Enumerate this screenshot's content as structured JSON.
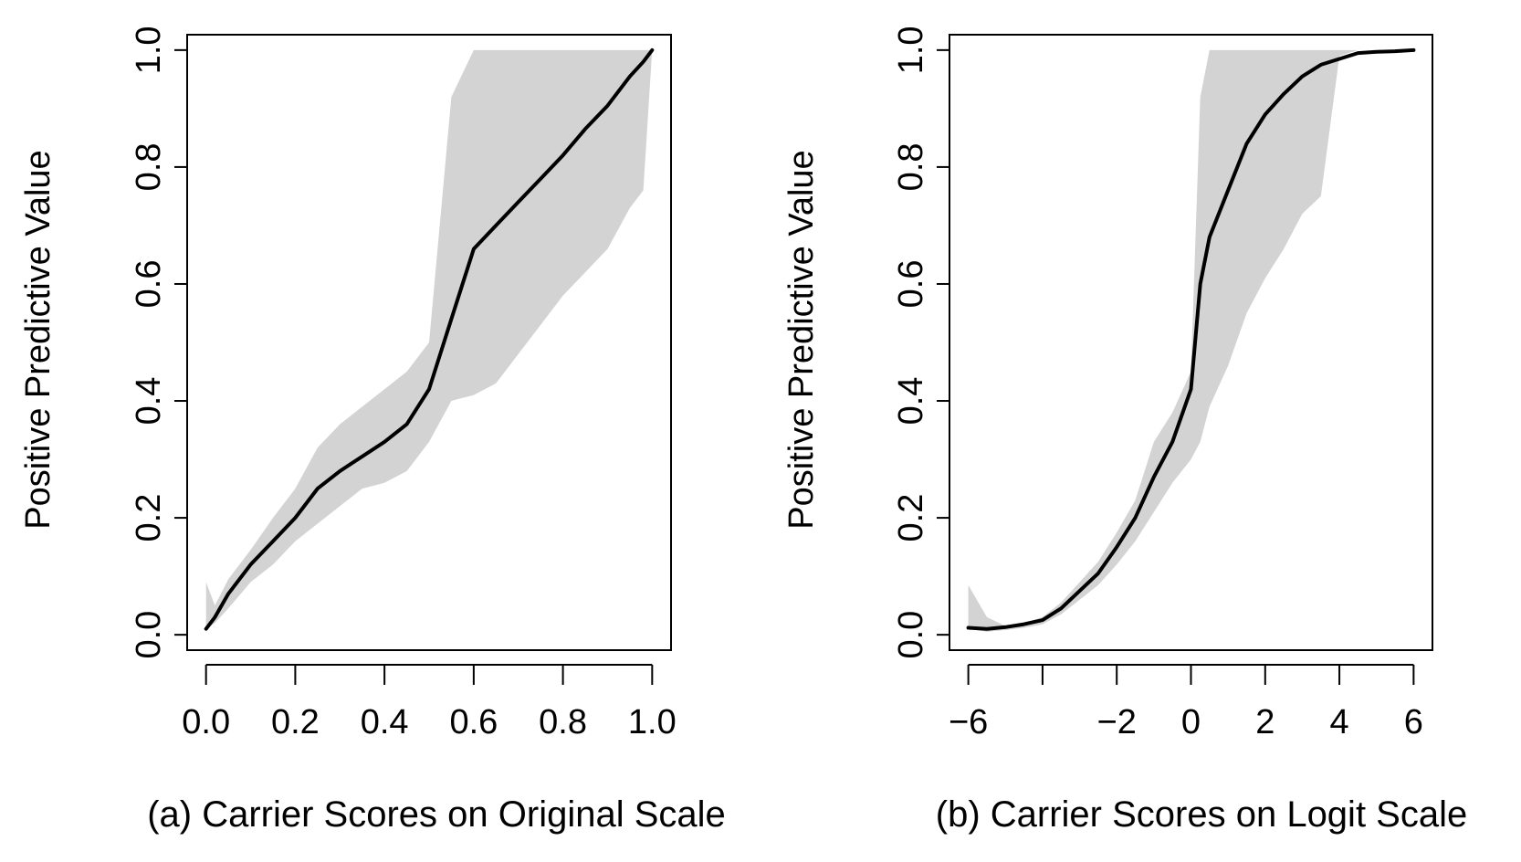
{
  "chart_data": [
    {
      "type": "line",
      "caption": "(a) Carrier Scores on Original Scale",
      "ylabel": "Positive Predictive Value",
      "xlabel": "",
      "xlim": [
        0.0,
        1.0
      ],
      "ylim": [
        0.0,
        1.0
      ],
      "x_ticks": [
        "0.0",
        "0.2",
        "0.4",
        "0.6",
        "0.8",
        "1.0"
      ],
      "y_ticks": [
        "0.0",
        "0.2",
        "0.4",
        "0.6",
        "0.8",
        "1.0"
      ],
      "band_color": "#d3d3d3",
      "line_color": "#000000",
      "series": [
        {
          "role": "estimate",
          "x": [
            0.0,
            0.02,
            0.05,
            0.1,
            0.15,
            0.2,
            0.25,
            0.3,
            0.35,
            0.4,
            0.45,
            0.5,
            0.55,
            0.6,
            0.65,
            0.7,
            0.75,
            0.8,
            0.85,
            0.9,
            0.95,
            0.98,
            1.0
          ],
          "y": [
            0.01,
            0.03,
            0.07,
            0.12,
            0.16,
            0.2,
            0.25,
            0.28,
            0.305,
            0.33,
            0.36,
            0.42,
            0.54,
            0.66,
            0.7,
            0.74,
            0.78,
            0.82,
            0.865,
            0.905,
            0.955,
            0.98,
            1.0
          ]
        },
        {
          "role": "band-upper",
          "x": [
            0.0,
            0.02,
            0.05,
            0.1,
            0.15,
            0.2,
            0.25,
            0.3,
            0.35,
            0.4,
            0.45,
            0.5,
            0.55,
            0.6,
            0.65,
            0.7,
            0.75,
            0.8,
            0.85,
            0.9,
            0.95,
            0.98,
            1.0
          ],
          "y": [
            0.09,
            0.05,
            0.095,
            0.145,
            0.2,
            0.25,
            0.32,
            0.36,
            0.39,
            0.42,
            0.45,
            0.5,
            0.92,
            1.0,
            1.0,
            1.0,
            1.0,
            1.0,
            1.0,
            1.0,
            1.0,
            1.0,
            1.0
          ]
        },
        {
          "role": "band-lower",
          "x": [
            0.0,
            0.02,
            0.05,
            0.1,
            0.15,
            0.2,
            0.25,
            0.3,
            0.35,
            0.4,
            0.45,
            0.5,
            0.55,
            0.6,
            0.65,
            0.7,
            0.75,
            0.8,
            0.85,
            0.9,
            0.95,
            0.98,
            1.0
          ],
          "y": [
            0.01,
            0.02,
            0.045,
            0.09,
            0.12,
            0.16,
            0.19,
            0.22,
            0.25,
            0.26,
            0.28,
            0.33,
            0.4,
            0.41,
            0.43,
            0.48,
            0.53,
            0.58,
            0.62,
            0.66,
            0.73,
            0.76,
            1.0
          ]
        }
      ]
    },
    {
      "type": "line",
      "caption": "(b) Carrier Scores on Logit Scale",
      "ylabel": "Positive Predictive Value",
      "xlabel": "",
      "xlim": [
        -6,
        6
      ],
      "ylim": [
        0.0,
        1.0
      ],
      "x_ticks": [
        "−6",
        "−4",
        "−2",
        "0",
        "2",
        "4",
        "6"
      ],
      "x_tick_values": [
        -6,
        -4,
        -2,
        0,
        2,
        4,
        6
      ],
      "x_tick_labels_shown": [
        "−6",
        "",
        "−2",
        "0",
        "2",
        "4",
        "6"
      ],
      "y_ticks": [
        "0.0",
        "0.2",
        "0.4",
        "0.6",
        "0.8",
        "1.0"
      ],
      "band_color": "#d3d3d3",
      "line_color": "#000000",
      "series": [
        {
          "role": "estimate",
          "x": [
            -6,
            -5.5,
            -5,
            -4.5,
            -4,
            -3.5,
            -3,
            -2.5,
            -2,
            -1.5,
            -1,
            -0.5,
            0,
            0.25,
            0.5,
            1,
            1.5,
            2,
            2.5,
            3,
            3.5,
            4,
            4.5,
            5,
            5.5,
            6
          ],
          "y": [
            0.012,
            0.01,
            0.013,
            0.018,
            0.025,
            0.045,
            0.075,
            0.105,
            0.15,
            0.2,
            0.27,
            0.33,
            0.42,
            0.6,
            0.68,
            0.76,
            0.84,
            0.89,
            0.925,
            0.955,
            0.975,
            0.985,
            0.995,
            0.997,
            0.998,
            1.0
          ]
        },
        {
          "role": "band-upper",
          "x": [
            -6,
            -5.5,
            -5,
            -4.5,
            -4,
            -3.5,
            -3,
            -2.5,
            -2,
            -1.5,
            -1,
            -0.5,
            0,
            0.25,
            0.5,
            1,
            1.5,
            2,
            2.5,
            3,
            3.5,
            4,
            4.5,
            5,
            5.5,
            6
          ],
          "y": [
            0.085,
            0.03,
            0.015,
            0.02,
            0.03,
            0.055,
            0.09,
            0.125,
            0.175,
            0.23,
            0.33,
            0.38,
            0.45,
            0.92,
            1.0,
            1.0,
            1.0,
            1.0,
            1.0,
            1.0,
            1.0,
            1.0,
            1.0,
            1.0,
            1.0,
            1.0
          ]
        },
        {
          "role": "band-lower",
          "x": [
            -6,
            -5.5,
            -5,
            -4.5,
            -4,
            -3.5,
            -3,
            -2.5,
            -2,
            -1.5,
            -1,
            -0.5,
            0,
            0.25,
            0.5,
            1,
            1.5,
            2,
            2.5,
            3,
            3.5,
            4,
            4.5,
            5,
            5.5,
            6
          ],
          "y": [
            0.01,
            0.005,
            0.008,
            0.012,
            0.018,
            0.035,
            0.06,
            0.085,
            0.12,
            0.16,
            0.21,
            0.26,
            0.3,
            0.33,
            0.39,
            0.46,
            0.55,
            0.61,
            0.66,
            0.72,
            0.75,
            0.99,
            1.0,
            1.0,
            1.0,
            1.0
          ]
        }
      ]
    }
  ]
}
